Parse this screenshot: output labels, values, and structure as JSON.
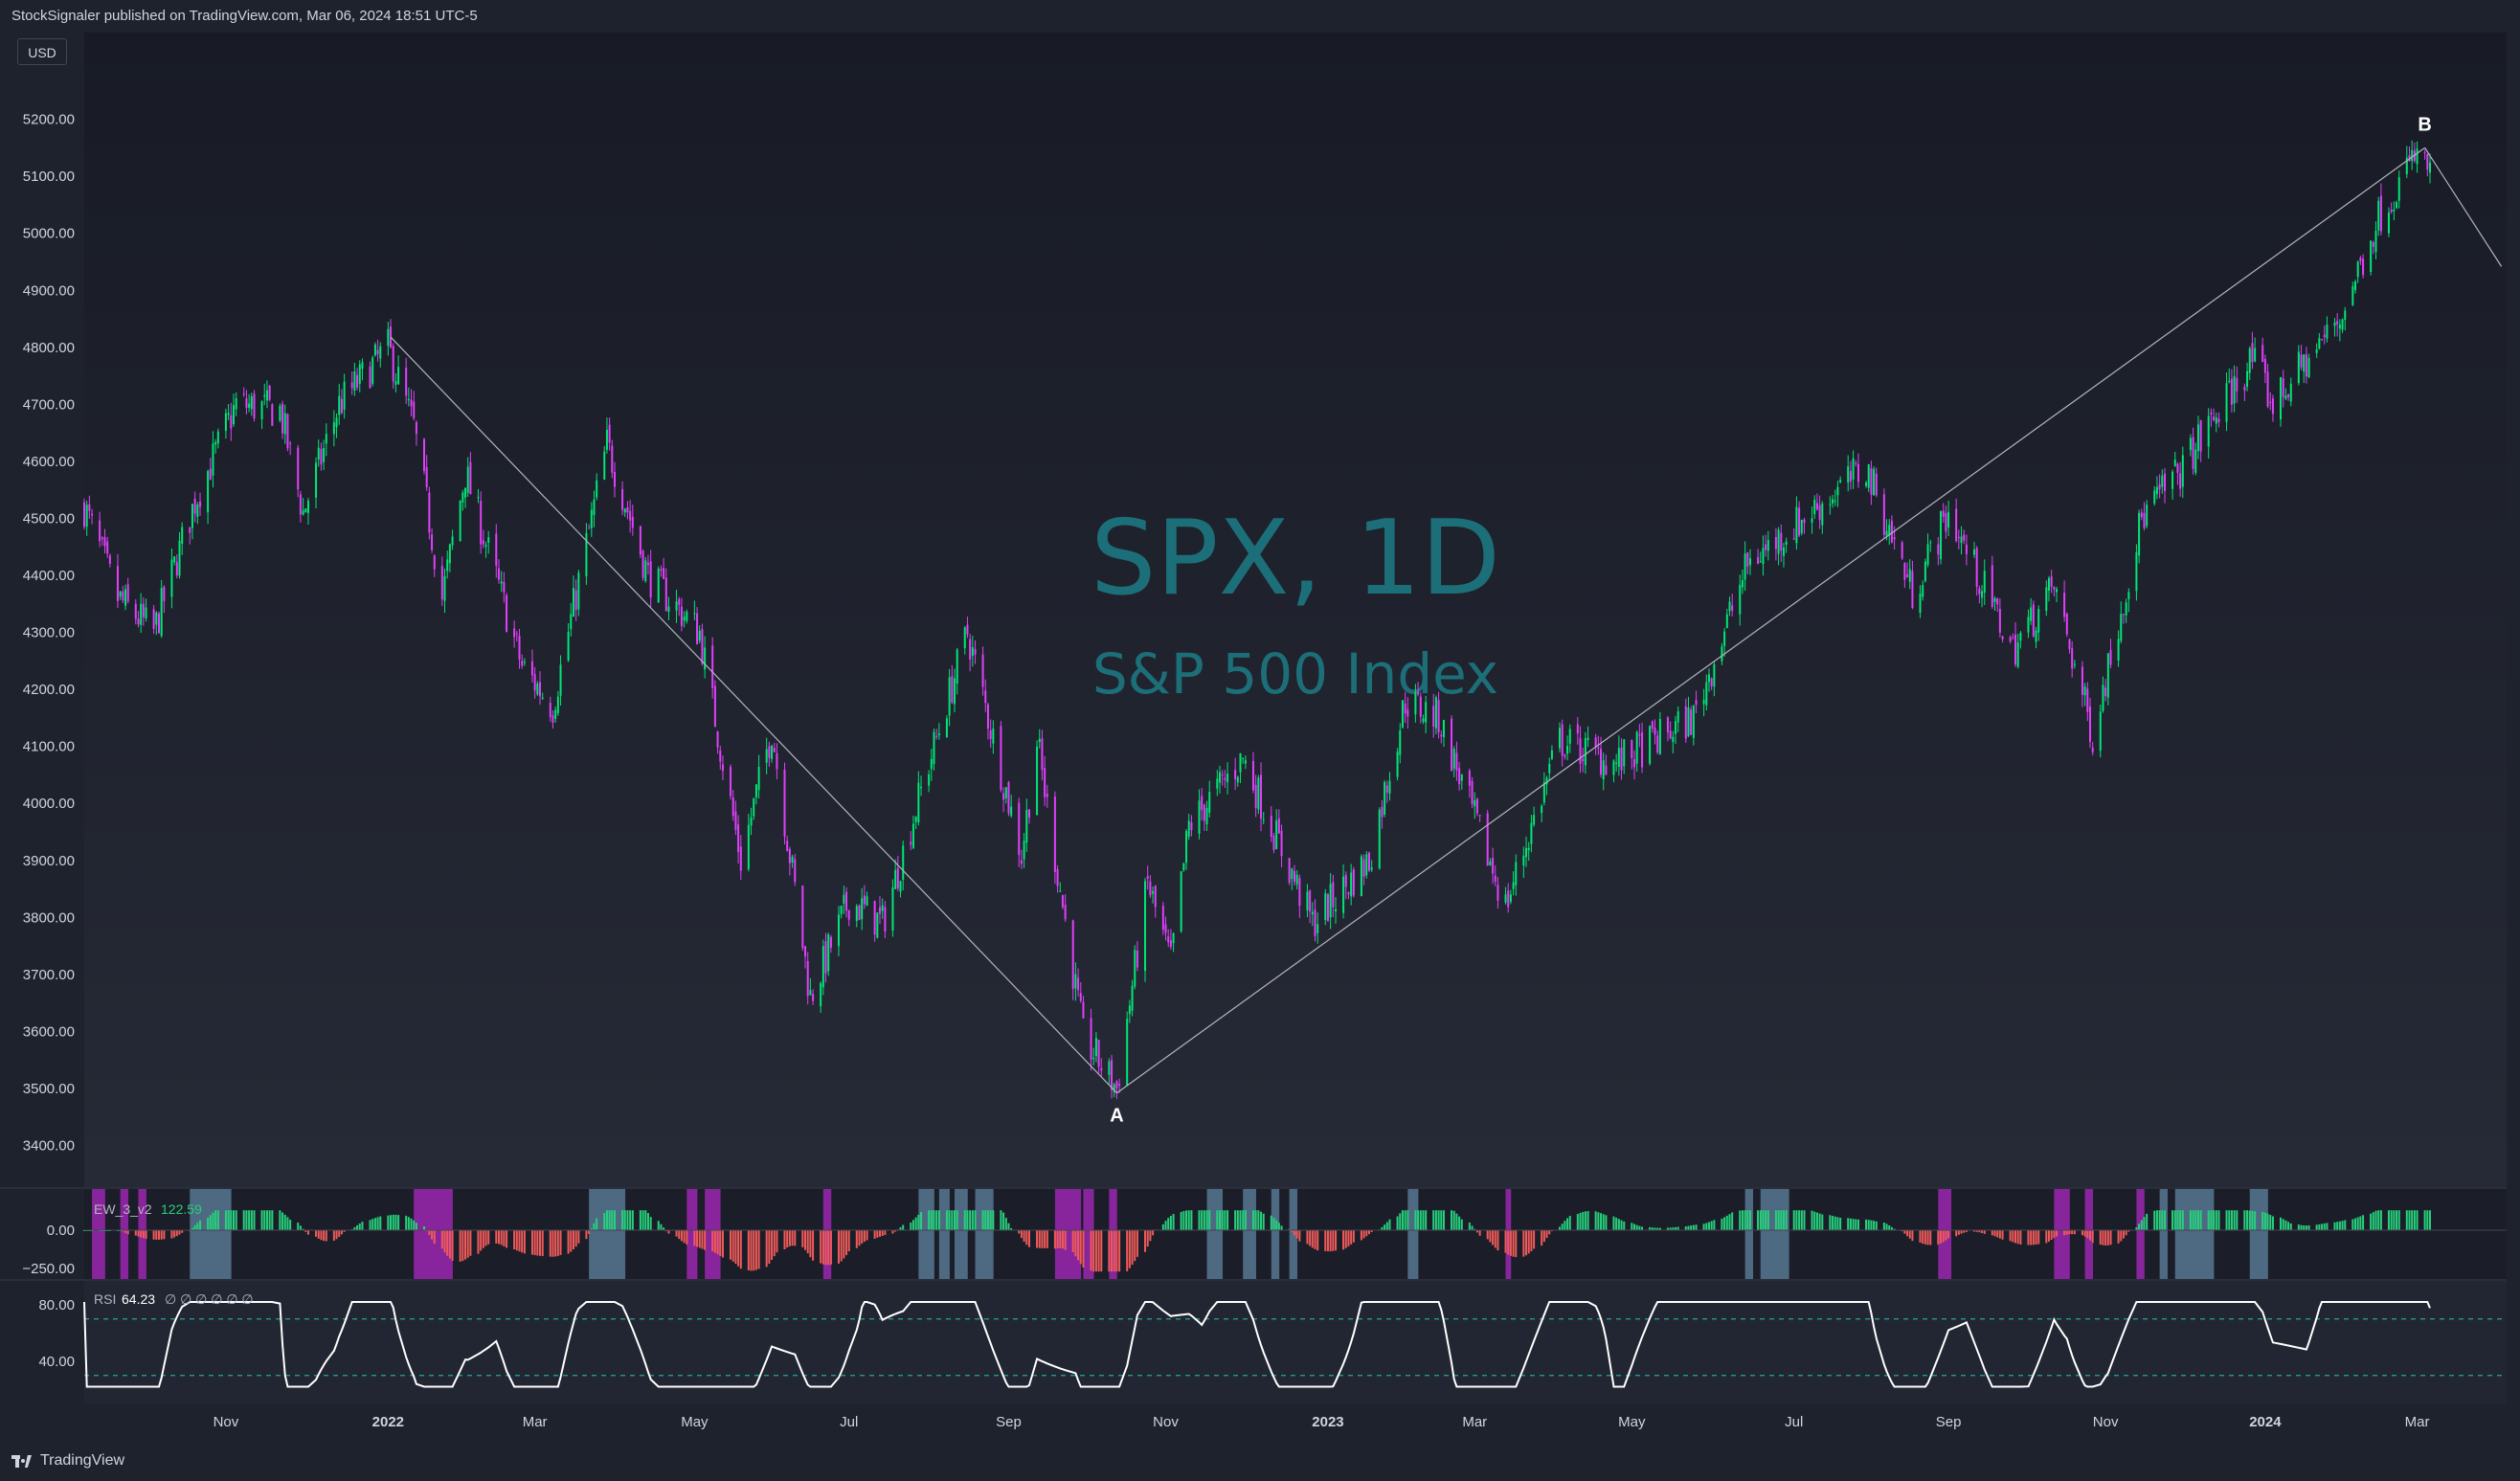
{
  "header": {
    "publisher_line": "StockSignaler published on TradingView.com, Mar 06, 2024 18:51 UTC-5"
  },
  "currency": "USD",
  "watermark": {
    "symbol": "SPX, 1D",
    "name": "S&P 500 Index"
  },
  "footer": {
    "brand": "TradingView"
  },
  "colors": {
    "background": "#1e222d",
    "main_pane": "#1f232e",
    "up_candle": "#00e676",
    "down_candle": "#e040fb",
    "wave_line": "#b2b5be",
    "watermark": "#1c6f78",
    "histogram_positive": "#26d07c",
    "histogram_negative": "#f05a5a",
    "highlight_blue": "#5b7c99",
    "highlight_purple": "#9c27b0",
    "rsi_line": "#ffffff",
    "rsi_bands": "#26a69a"
  },
  "chart_data": [
    {
      "type": "candlestick",
      "panel": "price",
      "y_ticks": [
        "5200.00",
        "5100.00",
        "5000.00",
        "4900.00",
        "4800.00",
        "4700.00",
        "4600.00",
        "4500.00",
        "4400.00",
        "4300.00",
        "4200.00",
        "4100.00",
        "4000.00",
        "3900.00",
        "3800.00",
        "3700.00",
        "3600.00",
        "3500.00",
        "3400.00"
      ],
      "ylim": [
        3360,
        5240
      ],
      "x_ticks": [
        "Nov",
        "2022",
        "Mar",
        "May",
        "Jul",
        "Sep",
        "Nov",
        "2023",
        "Mar",
        "May",
        "Jul",
        "Sep",
        "Nov",
        "2024",
        "Mar"
      ],
      "close_path": [
        {
          "date": "2021-09-07",
          "close": 4520
        },
        {
          "date": "2021-09-20",
          "close": 4360
        },
        {
          "date": "2021-10-04",
          "close": 4300
        },
        {
          "date": "2021-10-20",
          "close": 4530
        },
        {
          "date": "2021-11-05",
          "close": 4700
        },
        {
          "date": "2021-11-22",
          "close": 4690
        },
        {
          "date": "2021-12-01",
          "close": 4510
        },
        {
          "date": "2021-12-15",
          "close": 4700
        },
        {
          "date": "2022-01-03",
          "close": 4800
        },
        {
          "date": "2022-01-13",
          "close": 4660
        },
        {
          "date": "2022-01-24",
          "close": 4360
        },
        {
          "date": "2022-02-02",
          "close": 4580
        },
        {
          "date": "2022-02-24",
          "close": 4240
        },
        {
          "date": "2022-03-08",
          "close": 4170
        },
        {
          "date": "2022-03-29",
          "close": 4630
        },
        {
          "date": "2022-04-14",
          "close": 4400
        },
        {
          "date": "2022-05-04",
          "close": 4300
        },
        {
          "date": "2022-05-20",
          "close": 3900
        },
        {
          "date": "2022-06-01",
          "close": 4130
        },
        {
          "date": "2022-06-16",
          "close": 3660
        },
        {
          "date": "2022-07-01",
          "close": 3830
        },
        {
          "date": "2022-07-14",
          "close": 3790
        },
        {
          "date": "2022-08-16",
          "close": 4300
        },
        {
          "date": "2022-09-06",
          "close": 3910
        },
        {
          "date": "2022-09-12",
          "close": 4110
        },
        {
          "date": "2022-09-30",
          "close": 3590
        },
        {
          "date": "2022-10-13",
          "close": 3500
        },
        {
          "date": "2022-10-25",
          "close": 3860
        },
        {
          "date": "2022-11-03",
          "close": 3720
        },
        {
          "date": "2022-11-10",
          "close": 3960
        },
        {
          "date": "2022-12-01",
          "close": 4080
        },
        {
          "date": "2022-12-28",
          "close": 3790
        },
        {
          "date": "2023-01-19",
          "close": 3900
        },
        {
          "date": "2023-02-02",
          "close": 4180
        },
        {
          "date": "2023-02-15",
          "close": 4150
        },
        {
          "date": "2023-03-13",
          "close": 3820
        },
        {
          "date": "2023-04-03",
          "close": 4110
        },
        {
          "date": "2023-04-25",
          "close": 4070
        },
        {
          "date": "2023-05-25",
          "close": 4150
        },
        {
          "date": "2023-06-15",
          "close": 4420
        },
        {
          "date": "2023-07-31",
          "close": 4590
        },
        {
          "date": "2023-08-18",
          "close": 4370
        },
        {
          "date": "2023-09-01",
          "close": 4510
        },
        {
          "date": "2023-09-26",
          "close": 4270
        },
        {
          "date": "2023-10-12",
          "close": 4380
        },
        {
          "date": "2023-10-27",
          "close": 4120
        },
        {
          "date": "2023-11-15",
          "close": 4500
        },
        {
          "date": "2023-12-01",
          "close": 4590
        },
        {
          "date": "2023-12-28",
          "close": 4780
        },
        {
          "date": "2024-01-05",
          "close": 4700
        },
        {
          "date": "2024-01-31",
          "close": 4850
        },
        {
          "date": "2024-02-15",
          "close": 5030
        },
        {
          "date": "2024-03-01",
          "close": 5140
        },
        {
          "date": "2024-03-06",
          "close": 5105
        }
      ],
      "wave_points": [
        {
          "date": "2022-01-04",
          "price": 4818
        },
        {
          "label": "A",
          "date": "2022-10-13",
          "price": 3492
        },
        {
          "label": "B",
          "date": "2024-03-04",
          "price": 5150
        }
      ]
    },
    {
      "type": "bar",
      "panel": "indicator",
      "name": "EW_3_v2",
      "value": "122.59",
      "y_ticks": [
        "0.00",
        "−250.00"
      ]
    },
    {
      "type": "line",
      "panel": "rsi",
      "name": "RSI",
      "value": "64.23",
      "extra_values": "∅ ∅ ∅ ∅ ∅ ∅",
      "y_ticks": [
        "80.00",
        "40.00"
      ],
      "bands": [
        70,
        30
      ],
      "ylim": [
        20,
        90
      ]
    }
  ]
}
